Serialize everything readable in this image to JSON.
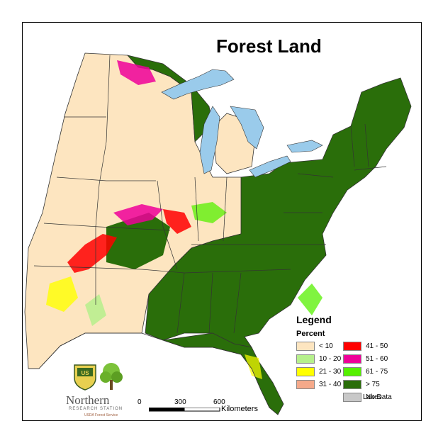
{
  "title": "Forest Land",
  "legend": {
    "title": "Legend",
    "subtitle": "Percent",
    "classes": [
      {
        "label": "< 10",
        "color": "#FDE5C0"
      },
      {
        "label": "10 - 20",
        "color": "#B6F08C"
      },
      {
        "label": "21 - 30",
        "color": "#FFFF00"
      },
      {
        "label": "31 - 40",
        "color": "#F5A98A"
      },
      {
        "label": "41 - 50",
        "color": "#FF0000"
      },
      {
        "label": "51 - 60",
        "color": "#EE0099"
      },
      {
        "label": "61 - 75",
        "color": "#55F000"
      },
      {
        "label": "> 75",
        "color": "#2A6E0A"
      },
      {
        "label": "No Data",
        "color": "#C8C8C8"
      }
    ],
    "lakes_label": "Lakes",
    "lakes_color": "#9ACBEB"
  },
  "scale": {
    "ticks": [
      "0",
      "300",
      "600"
    ],
    "unit": "Kilometers"
  },
  "logo": {
    "shield_text": "US",
    "org_name": "Northern",
    "org_sub": "RESEARCH STATION",
    "agency": "USDA Forest Service"
  },
  "map": {
    "region": "Eastern United States",
    "color_scheme": {
      "plains": "#FDE5C0",
      "forest": "#2A6E0A",
      "water": "#9ACBEB"
    }
  }
}
